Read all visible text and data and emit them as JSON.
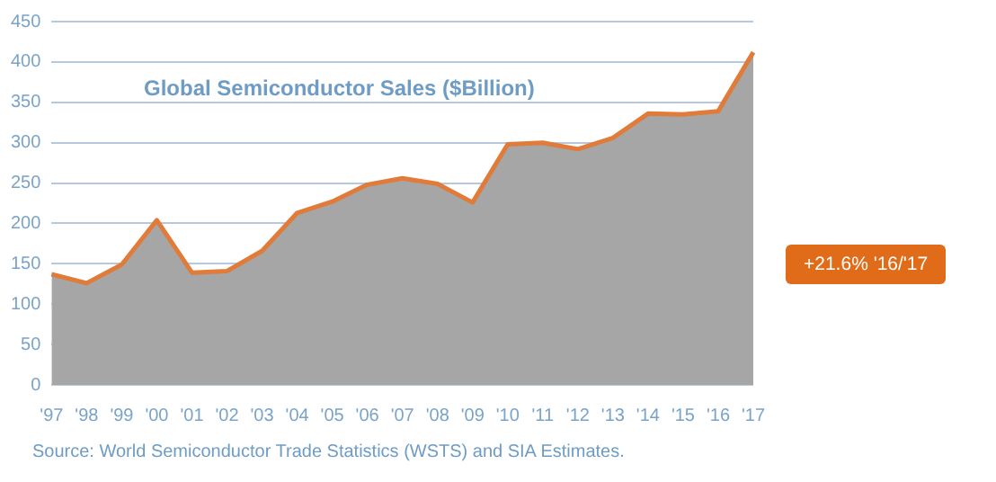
{
  "chart_data": {
    "type": "area",
    "title": "Global Semiconductor Sales ($Billion)",
    "categories": [
      "'97",
      "'98",
      "'99",
      "'00",
      "'01",
      "'02",
      "'03",
      "'04",
      "'05",
      "'06",
      "'07",
      "'08",
      "'09",
      "'10",
      "'11",
      "'12",
      "'13",
      "'14",
      "'15",
      "'16",
      "'17"
    ],
    "series": [
      {
        "color": "#e07b39",
        "values": [
          137,
          126,
          149,
          204,
          139,
          141,
          166,
          213,
          227,
          248,
          256,
          249,
          226,
          298,
          300,
          292,
          306,
          336,
          335,
          339,
          412
        ]
      }
    ],
    "ylim": [
      0,
      450
    ],
    "yticks": [
      0,
      50,
      100,
      150,
      200,
      250,
      300,
      350,
      400,
      450
    ],
    "grid": "y",
    "annotations": [
      "+21.6% '16/'17",
      "Source: World Semiconductor Trade Statistics (WSTS) and SIA Estimates."
    ]
  }
}
